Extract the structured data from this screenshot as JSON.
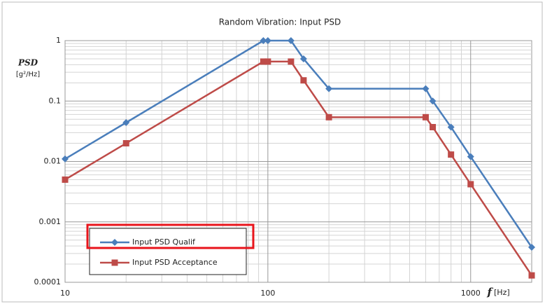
{
  "chart_data": {
    "type": "line",
    "title": "Random Vibration: Input PSD",
    "ylabel": "PSD",
    "ylabel_unit": "[g²/Hz]",
    "xlabel": "f",
    "xlabel_unit": "[Hz]",
    "x": [
      10,
      20,
      95,
      100,
      130,
      150,
      200,
      600,
      650,
      800,
      1000,
      2000
    ],
    "series": [
      {
        "name": "Input PSD Qualif",
        "color": "#4a7ebb",
        "marker": "diamond",
        "values": [
          0.011,
          0.044,
          1,
          1,
          1,
          0.5,
          0.16,
          0.16,
          0.1,
          0.037,
          0.012,
          0.00038
        ]
      },
      {
        "name": "Input PSD Acceptance",
        "color": "#be4b48",
        "marker": "square",
        "values": [
          0.005,
          0.02,
          0.45,
          0.45,
          0.45,
          0.22,
          0.054,
          0.054,
          0.037,
          0.013,
          0.0042,
          0.00013
        ]
      }
    ],
    "xlim": [
      10,
      2000
    ],
    "xticks": [
      10,
      100,
      1000
    ],
    "ylim": [
      0.0001,
      1
    ],
    "yticks": [
      0.0001,
      0.001,
      0.01,
      0.1,
      1
    ],
    "xscale": "log",
    "yscale": "log",
    "grid": true,
    "legend": "lower left"
  }
}
